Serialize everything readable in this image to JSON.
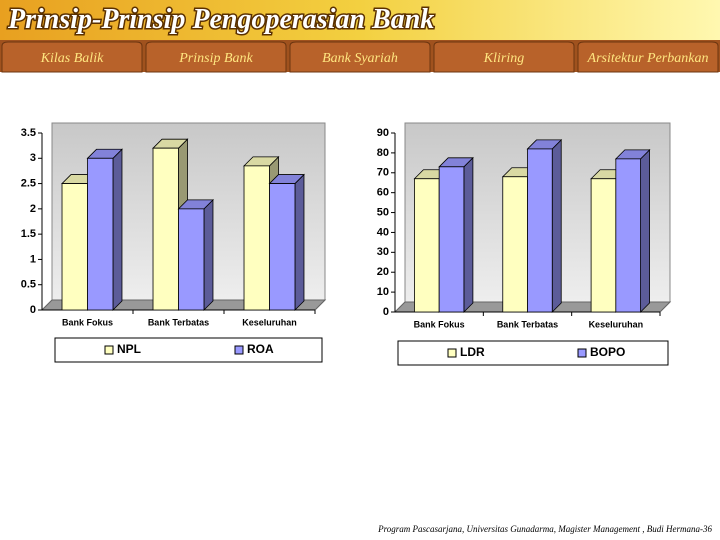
{
  "header": {
    "title": "Prinsip-Prinsip Pengoperasian Bank",
    "tabs": [
      "Kilas Balik",
      "Prinsip Bank",
      "Bank Syariah",
      "Kliring",
      "Arsitektur Perbankan"
    ]
  },
  "chart_data": [
    {
      "type": "bar",
      "categories": [
        "Bank Fokus",
        "Bank Terbatas",
        "Keseluruhan"
      ],
      "series": [
        {
          "name": "NPL",
          "color": "#ffffc0",
          "values": [
            2.5,
            3.2,
            2.85
          ]
        },
        {
          "name": "ROA",
          "color": "#9999ff",
          "values": [
            3.0,
            2.0,
            2.5
          ]
        }
      ],
      "ylim": [
        0,
        3.5
      ],
      "yticks": [
        0,
        0.5,
        1,
        1.5,
        2,
        2.5,
        3,
        3.5
      ],
      "grid": false,
      "legend": "bottom"
    },
    {
      "type": "bar",
      "categories": [
        "Bank Fokus",
        "Bank Terbatas",
        "Keseluruhan"
      ],
      "series": [
        {
          "name": "LDR",
          "color": "#ffffc0",
          "values": [
            67,
            68,
            67
          ]
        },
        {
          "name": "BOPO",
          "color": "#9999ff",
          "values": [
            73,
            82,
            77
          ]
        }
      ],
      "ylim": [
        0,
        90
      ],
      "yticks": [
        0,
        10,
        20,
        30,
        40,
        50,
        60,
        70,
        80,
        90
      ],
      "grid": false,
      "legend": "bottom"
    }
  ],
  "footer": "Program Pascasarjana, Universitas Gunadarma, Magister Management , Budi Hermana-36"
}
